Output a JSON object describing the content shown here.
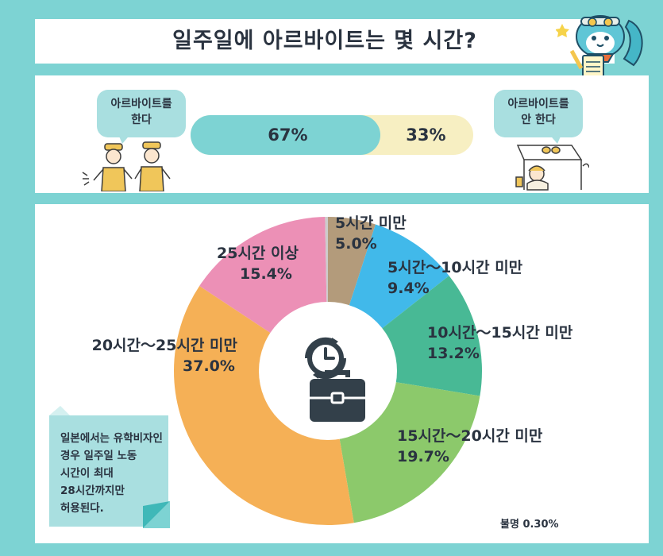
{
  "title": "일주일에 아르바이트는 몇 시간?",
  "work_panel": {
    "bubble_yes": [
      "아르바이트를",
      "한다"
    ],
    "bubble_no": [
      "아르바이트를",
      "안 한다"
    ],
    "yes_label": "67%",
    "no_label": "33%",
    "yes_value": 67,
    "no_value": 33
  },
  "note": "일본에서는 유학비자인 경우 일주일 노동 시간이 최대 28시간까지만 허용된다.",
  "unknown_label": "불명 0.30%",
  "colors": {
    "background": "#7dd3d3",
    "bar_yes": "#7dd3d3",
    "bar_no": "#f7efc2",
    "note": "#a9dfe0"
  },
  "chart_data": {
    "type": "pie",
    "donut": true,
    "labels": [
      "5시간 미만",
      "5시간～10시간 미만",
      "10시간～15시간 미만",
      "15시간～20시간 미만",
      "20시간～25시간 미만",
      "25시간 이상",
      "불명"
    ],
    "values": [
      5.0,
      9.4,
      13.2,
      19.7,
      37.0,
      15.4,
      0.3
    ],
    "value_labels": [
      "5.0%",
      "9.4%",
      "13.2%",
      "19.7%",
      "37.0%",
      "15.4%",
      "0.30%"
    ],
    "colors": [
      "#b39b7b",
      "#41b9ea",
      "#48b995",
      "#8cc96b",
      "#f5b056",
      "#ec90b6",
      "#cccccc"
    ],
    "center_icons": [
      "clock-icon",
      "briefcase-icon"
    ]
  }
}
